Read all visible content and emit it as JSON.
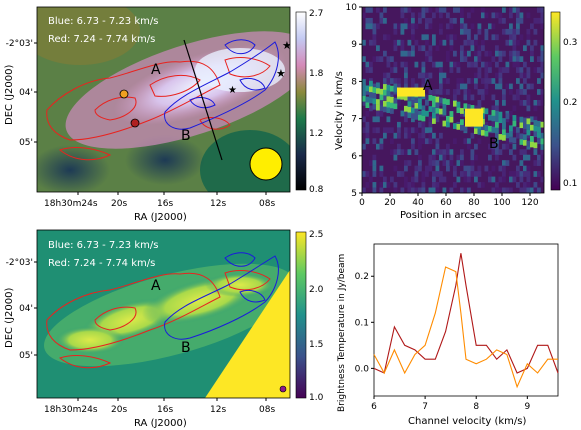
{
  "panels": {
    "top_left": {
      "annotation_blue": "Blue: 6.73 - 7.23 km/s",
      "annotation_red": "Red: 7.24 - 7.74 km/s",
      "xlabel": "RA (J2000)",
      "ylabel": "DEC (J2000)",
      "xticks": [
        "18h30m24s",
        "20s",
        "16s",
        "12s",
        "08s"
      ],
      "yticks": [
        "-2°03'",
        "04'",
        "05'"
      ],
      "label_A": "A",
      "label_B": "B",
      "colorbar_ticks": [
        "2.7",
        "1.8",
        "1.2",
        "0.8"
      ]
    },
    "top_right": {
      "xlabel": "Position in arcsec",
      "ylabel": "Velocity in km/s",
      "xticks": [
        "0",
        "20",
        "40",
        "60",
        "80",
        "100",
        "120"
      ],
      "yticks": [
        "5",
        "6",
        "7",
        "8",
        "9",
        "10"
      ],
      "label_A": "A",
      "label_B": "B",
      "colorbar_ticks": [
        "0.3",
        "0.2",
        "0.1"
      ]
    },
    "bottom_left": {
      "annotation_blue": "Blue: 6.73 - 7.23 km/s",
      "annotation_red": "Red: 7.24 - 7.74 km/s",
      "xlabel": "RA (J2000)",
      "ylabel": "DEC (J2000)",
      "xticks": [
        "18h30m24s",
        "20s",
        "16s",
        "12s",
        "08s"
      ],
      "yticks": [
        "-2°03'",
        "04'",
        "05'"
      ],
      "label_A": "A",
      "label_B": "B",
      "colorbar_ticks": [
        "2.5",
        "2.0",
        "1.5",
        "1.0"
      ]
    },
    "bottom_right": {
      "xlabel": "Channel velocity (km/s)",
      "ylabel": "Brightness Temperature in Jy/beam",
      "xticks": [
        "6",
        "7",
        "8",
        "9"
      ],
      "yticks": [
        "0.2",
        "0.1",
        "0.0"
      ]
    }
  },
  "colors": {
    "red_contour": "#e8231f",
    "blue_contour": "#1a1adc",
    "spectrum_red": "#b01818",
    "spectrum_orange": "#ff8c00",
    "beam": "#ffee00"
  },
  "chart_data": [
    {
      "type": "image",
      "panel": "top_left",
      "colorbar_range": [
        0.8,
        2.7
      ]
    },
    {
      "type": "heatmap",
      "panel": "top_right",
      "xlim": [
        0,
        130
      ],
      "ylim": [
        5,
        10
      ],
      "colorbar_range": [
        0.1,
        0.3
      ],
      "bright_features": [
        {
          "label": "A",
          "x": 35,
          "y": 7.7,
          "value": 0.3
        },
        {
          "label": "B",
          "x": 80,
          "y": 7.0,
          "value": 0.3
        }
      ]
    },
    {
      "type": "image",
      "panel": "bottom_left",
      "colorbar_range": [
        1.0,
        2.5
      ]
    },
    {
      "type": "line",
      "panel": "bottom_right",
      "xlim": [
        6,
        9.6
      ],
      "ylim": [
        -0.06,
        0.27
      ],
      "series": [
        {
          "color": "#b01818",
          "x": [
            6.0,
            6.2,
            6.4,
            6.6,
            6.8,
            7.0,
            7.2,
            7.4,
            7.6,
            7.7,
            7.8,
            8.0,
            8.2,
            8.4,
            8.6,
            8.8,
            9.0,
            9.2,
            9.4,
            9.6
          ],
          "y": [
            0.0,
            -0.01,
            0.09,
            0.05,
            0.04,
            0.02,
            0.02,
            0.08,
            0.18,
            0.25,
            0.18,
            0.05,
            0.05,
            0.02,
            0.04,
            -0.01,
            0.0,
            0.05,
            0.05,
            -0.01
          ]
        },
        {
          "color": "#ff8c00",
          "x": [
            6.0,
            6.2,
            6.4,
            6.6,
            6.8,
            7.0,
            7.2,
            7.4,
            7.6,
            7.7,
            7.8,
            8.0,
            8.2,
            8.4,
            8.6,
            8.8,
            9.0,
            9.2,
            9.4,
            9.6
          ],
          "y": [
            0.03,
            -0.01,
            0.04,
            -0.01,
            0.03,
            0.05,
            0.12,
            0.22,
            0.21,
            0.12,
            0.02,
            0.01,
            0.02,
            0.04,
            0.03,
            -0.04,
            0.01,
            -0.01,
            0.02,
            0.02
          ]
        }
      ]
    }
  ]
}
